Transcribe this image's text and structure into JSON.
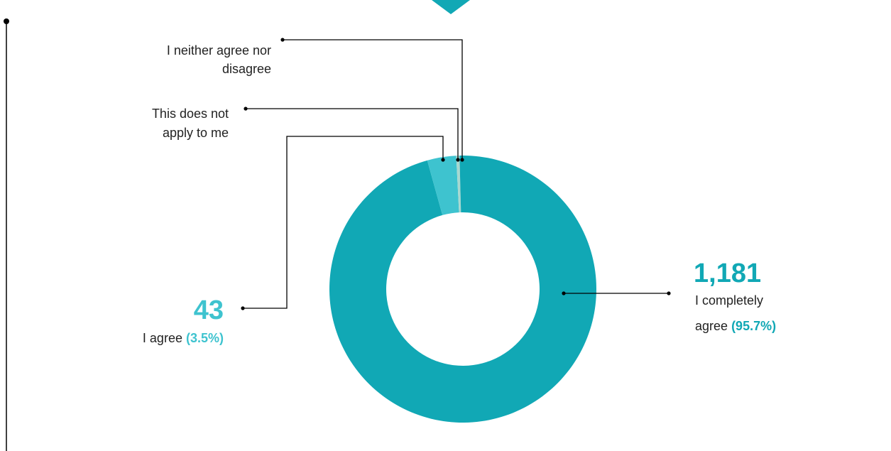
{
  "colors": {
    "accent": "#11a8b5",
    "accent_light": "#3ec3cf",
    "slice_pale": "#a8d8d0",
    "line": "#000000",
    "text": "#222222"
  },
  "chart_data": {
    "type": "pie",
    "variant": "donut",
    "slices": [
      {
        "label": "I completely agree",
        "value": 1181,
        "value_text": "1,181",
        "percent": 95.7,
        "percent_text": "(95.7%)",
        "color": "#11a8b5"
      },
      {
        "label": "I agree",
        "value": 43,
        "value_text": "43",
        "percent": 3.5,
        "percent_text": "(3.5%)",
        "color": "#3ec3cf"
      },
      {
        "label_lines": [
          "This does not",
          "apply to me"
        ],
        "percent": 0.4,
        "color": "#a8d8d0"
      },
      {
        "label_lines": [
          "I neither agree nor",
          "disagree"
        ],
        "percent": 0.4,
        "color": "#11a8b5"
      }
    ],
    "labels": {
      "completely": {
        "number": "1,181",
        "line1": "I completely",
        "line2": "agree",
        "pct": "(95.7%)"
      },
      "agree": {
        "number": "43",
        "text": "I agree",
        "pct": "(3.5%)"
      },
      "not_apply": {
        "line1": "This does not",
        "line2": "apply to me"
      },
      "neither": {
        "line1": "I neither agree nor",
        "line2": "disagree"
      }
    }
  }
}
